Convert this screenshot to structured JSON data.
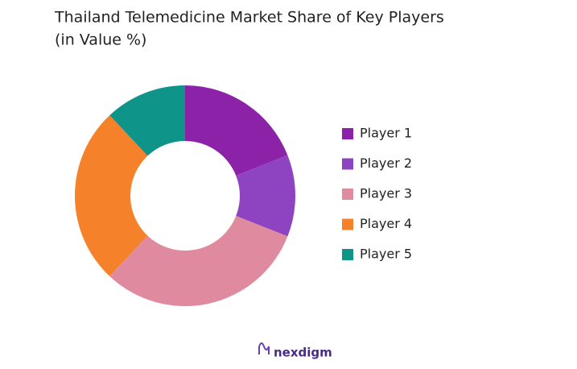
{
  "chart_data": {
    "type": "pie",
    "title": "Thailand Telemedicine Market Share of Key Players",
    "subtitle": "(in Value %)",
    "categories": [
      "Player 1",
      "Player 2",
      "Player 3",
      "Player 4",
      "Player 5"
    ],
    "values": [
      19,
      12,
      31,
      26,
      12
    ],
    "colors": [
      "#8b22a8",
      "#8e44c0",
      "#e08a9f",
      "#f5812a",
      "#0e9488"
    ],
    "legend": "right",
    "watermark": "nexdigm"
  }
}
